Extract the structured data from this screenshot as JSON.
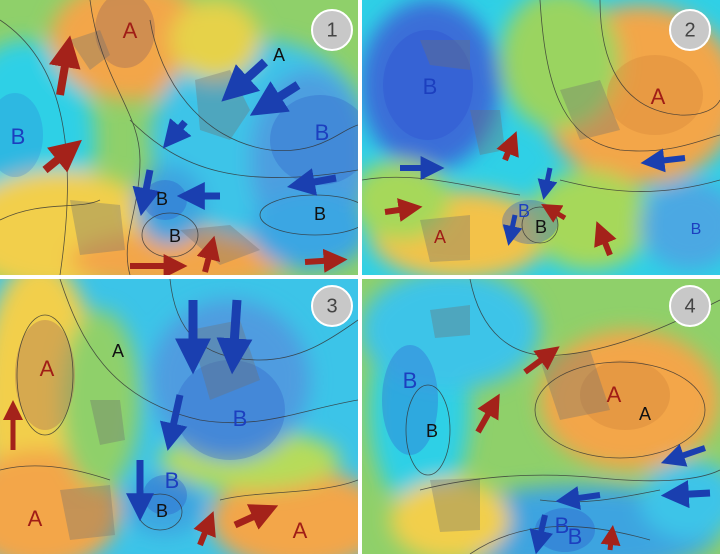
{
  "colors": {
    "high_label": "#a01d16",
    "low_label": "#1c3fbf",
    "black_label": "#111111",
    "warm_arrow": "#a4221a",
    "cold_arrow": "#1a3fb0",
    "divider": "#ffffff"
  },
  "panels": [
    {
      "number": "1",
      "labels": [
        {
          "text": "A",
          "kind": "high"
        },
        {
          "text": "A",
          "kind": "black"
        },
        {
          "text": "B",
          "kind": "low"
        },
        {
          "text": "B",
          "kind": "low"
        },
        {
          "text": "B",
          "kind": "black"
        },
        {
          "text": "B",
          "kind": "low"
        },
        {
          "text": "B",
          "kind": "black"
        }
      ]
    },
    {
      "number": "2",
      "labels": [
        {
          "text": "B",
          "kind": "low"
        },
        {
          "text": "A",
          "kind": "high"
        },
        {
          "text": "A",
          "kind": "high"
        },
        {
          "text": "B",
          "kind": "low"
        },
        {
          "text": "B",
          "kind": "black"
        },
        {
          "text": "B",
          "kind": "low"
        }
      ]
    },
    {
      "number": "3",
      "labels": [
        {
          "text": "A",
          "kind": "high"
        },
        {
          "text": "A",
          "kind": "black"
        },
        {
          "text": "B",
          "kind": "low"
        },
        {
          "text": "B",
          "kind": "low"
        },
        {
          "text": "B",
          "kind": "black"
        },
        {
          "text": "A",
          "kind": "high"
        },
        {
          "text": "A",
          "kind": "high"
        }
      ]
    },
    {
      "number": "4",
      "labels": [
        {
          "text": "B",
          "kind": "low"
        },
        {
          "text": "B",
          "kind": "black"
        },
        {
          "text": "A",
          "kind": "high"
        },
        {
          "text": "A",
          "kind": "black"
        },
        {
          "text": "B",
          "kind": "low"
        },
        {
          "text": "B",
          "kind": "low"
        }
      ]
    }
  ]
}
